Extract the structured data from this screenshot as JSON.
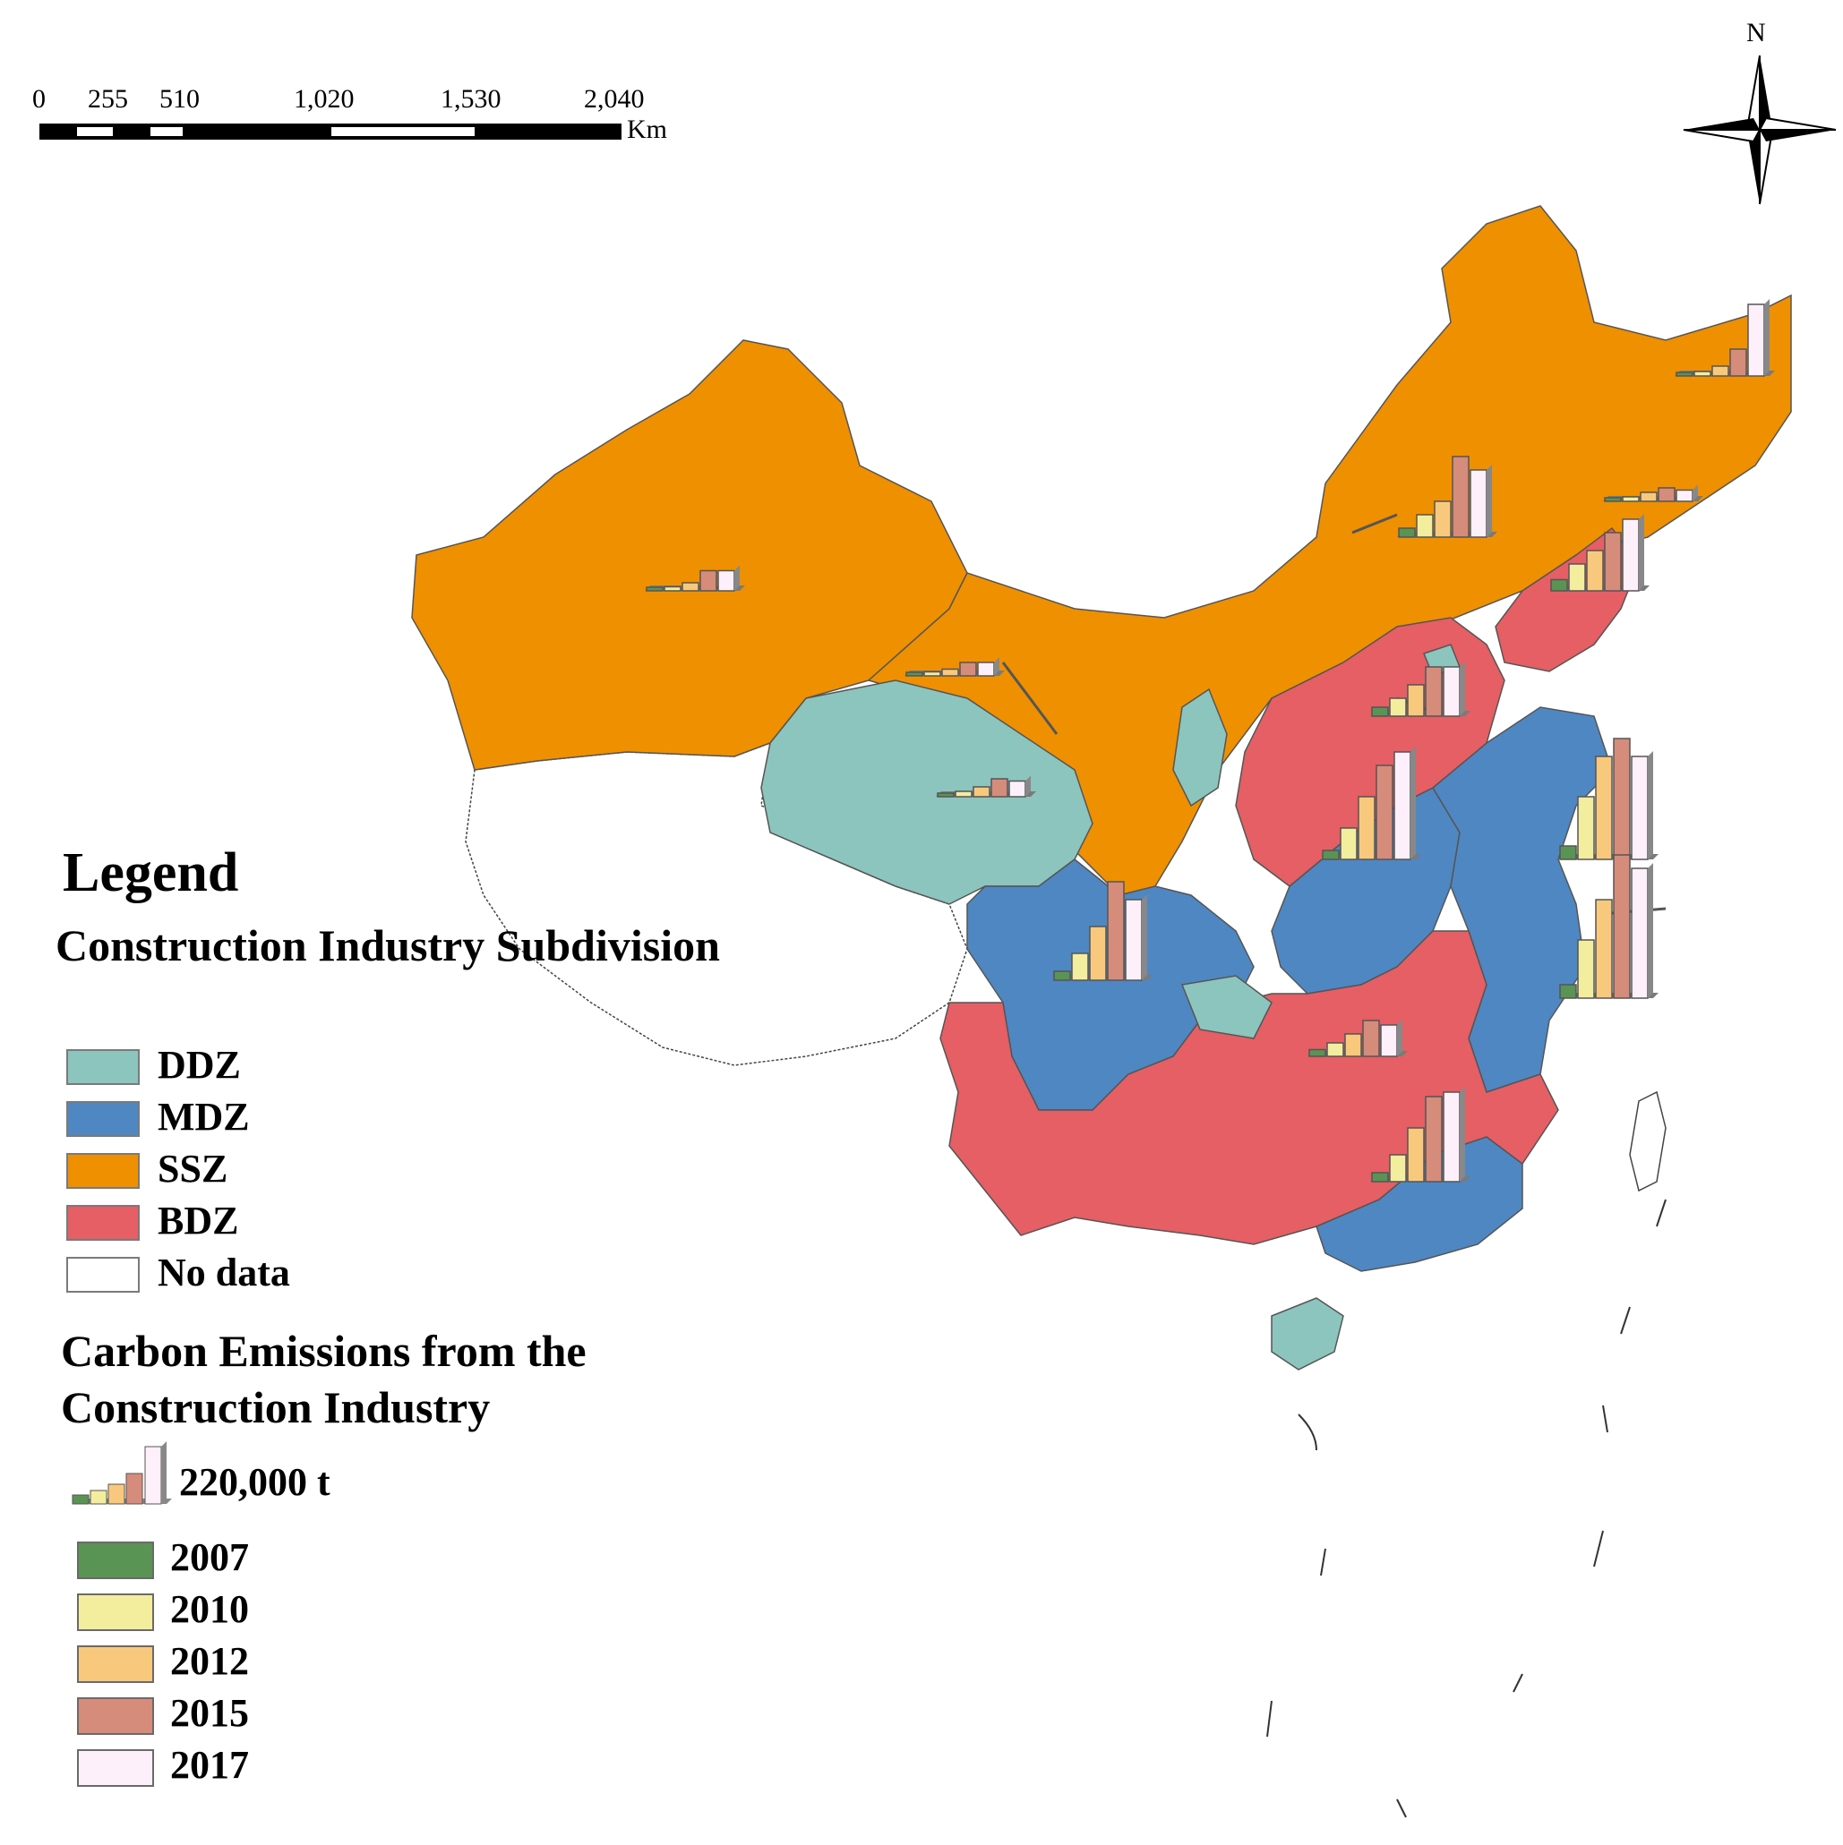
{
  "scale_bar": {
    "ticks": [
      "0",
      "255",
      "510",
      "1,020",
      "1,530",
      "2,040"
    ],
    "unit": "Km"
  },
  "north_arrow": {
    "label": "N",
    "icon": "north-arrow-icon"
  },
  "legend": {
    "title": "Legend",
    "subdivision_title": "Construction Industry Subdivision",
    "zones": [
      {
        "label": "DDZ",
        "color": "#8cc5bd"
      },
      {
        "label": "MDZ",
        "color": "#4f87c2"
      },
      {
        "label": "SSZ",
        "color": "#ef9000"
      },
      {
        "label": "BDZ",
        "color": "#e55f64"
      },
      {
        "label": "No data",
        "color": "#ffffff"
      }
    ],
    "emissions_title": "Carbon Emissions from the Construction Industry",
    "reference_value": "220,000 t",
    "years": [
      {
        "label": "2007",
        "color": "#5a9454"
      },
      {
        "label": "2010",
        "color": "#f3ed9e"
      },
      {
        "label": "2012",
        "color": "#f8c97d"
      },
      {
        "label": "2015",
        "color": "#d68c7b"
      },
      {
        "label": "2017",
        "color": "#fdf0fb"
      }
    ]
  },
  "chart_data": {
    "type": "bar",
    "description_units": "relative bar heights, reference bar = 220,000 t",
    "categories": [
      "2007",
      "2010",
      "2012",
      "2015",
      "2017"
    ],
    "reference": {
      "value": 220000,
      "unit": "t"
    },
    "series": [
      {
        "values": [
          5000,
          10000,
          22000,
          60000,
          160000
        ]
      },
      {
        "values": [
          6000,
          9000,
          18000,
          45000,
          45000
        ]
      },
      {
        "values": [
          5000,
          9000,
          15000,
          30000,
          30000
        ]
      },
      {
        "values": [
          20000,
          50000,
          80000,
          180000,
          150000
        ]
      },
      {
        "values": [
          6000,
          12000,
          22000,
          40000,
          35000
        ]
      },
      {
        "values": [
          6000,
          10000,
          20000,
          30000,
          25000
        ]
      },
      {
        "values": [
          25000,
          60000,
          90000,
          130000,
          160000
        ]
      },
      {
        "values": [
          20000,
          40000,
          70000,
          110000,
          110000
        ]
      },
      {
        "values": [
          30000,
          140000,
          230000,
          270000,
          230000
        ]
      },
      {
        "values": [
          30000,
          130000,
          220000,
          320000,
          290000
        ]
      },
      {
        "values": [
          20000,
          70000,
          140000,
          210000,
          240000
        ]
      },
      {
        "values": [
          20000,
          60000,
          120000,
          220000,
          180000
        ]
      },
      {
        "values": [
          15000,
          30000,
          50000,
          80000,
          70000
        ]
      },
      {
        "values": [
          20000,
          60000,
          120000,
          190000,
          200000
        ]
      }
    ]
  }
}
